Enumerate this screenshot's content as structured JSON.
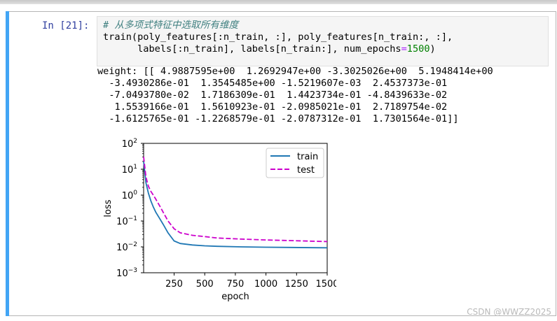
{
  "cell": {
    "prompt": "In [21]:",
    "code": {
      "comment": "# 从多项式特征中选取所有维度",
      "line2": "train(poly_features[:n_train, :], poly_features[n_train:, :],",
      "line3_a": "      labels[:n_train], labels[n_train:], num_epochs",
      "line3_eq": "=",
      "line3_num": "1500",
      "line3_b": ")"
    },
    "output_lines": [
      "weight: [[ 4.9887595e+00  1.2692947e+00 -3.3025026e+00  5.1948414e+00",
      "  -3.4930286e-01  1.3545485e+00 -1.5219607e-03  2.4537373e-01",
      "  -7.0493780e-02  1.7186309e-01  1.4423734e-01 -4.8439633e-02",
      "   1.5539166e-01  1.5610923e-01 -2.0985021e-01  2.7189754e-02",
      "  -1.6125765e-01 -1.2268579e-01 -2.0787312e-01  1.7301564e-01]]"
    ]
  },
  "watermark": "CSDN @WWZZ2025",
  "chart_data": {
    "type": "line",
    "xlabel": "epoch",
    "ylabel": "loss",
    "xlim": [
      1,
      1500
    ],
    "ylim": [
      0.001,
      100
    ],
    "yscale": "log",
    "x_ticks": [
      250,
      500,
      750,
      1000,
      1250,
      1500
    ],
    "y_ticks": [
      {
        "value": 100,
        "base": "10",
        "exp": "2"
      },
      {
        "value": 10,
        "base": "10",
        "exp": "1"
      },
      {
        "value": 1,
        "base": "10",
        "exp": "0"
      },
      {
        "value": 0.1,
        "base": "10",
        "exp": "−1"
      },
      {
        "value": 0.01,
        "base": "10",
        "exp": "−2"
      },
      {
        "value": 0.001,
        "base": "10",
        "exp": "−3"
      }
    ],
    "legend_position": "top-right",
    "series": [
      {
        "name": "train",
        "color": "#1f77b4",
        "dash": "solid",
        "x": [
          1,
          20,
          40,
          60,
          80,
          100,
          130,
          160,
          200,
          250,
          300,
          400,
          500,
          600,
          800,
          1000,
          1200,
          1400,
          1500
        ],
        "y": [
          20,
          3,
          1.2,
          0.6,
          0.35,
          0.22,
          0.13,
          0.075,
          0.035,
          0.017,
          0.0135,
          0.0118,
          0.011,
          0.0105,
          0.01,
          0.0097,
          0.0095,
          0.0093,
          0.0092
        ]
      },
      {
        "name": "test",
        "color": "#cc00cc",
        "dash": "dashed",
        "x": [
          1,
          20,
          40,
          60,
          80,
          100,
          130,
          160,
          200,
          250,
          300,
          400,
          500,
          600,
          800,
          1000,
          1200,
          1400,
          1500
        ],
        "y": [
          30,
          5,
          2.2,
          1.4,
          1.0,
          0.7,
          0.4,
          0.22,
          0.1,
          0.05,
          0.035,
          0.028,
          0.025,
          0.022,
          0.02,
          0.0185,
          0.0175,
          0.0165,
          0.016
        ]
      }
    ]
  }
}
